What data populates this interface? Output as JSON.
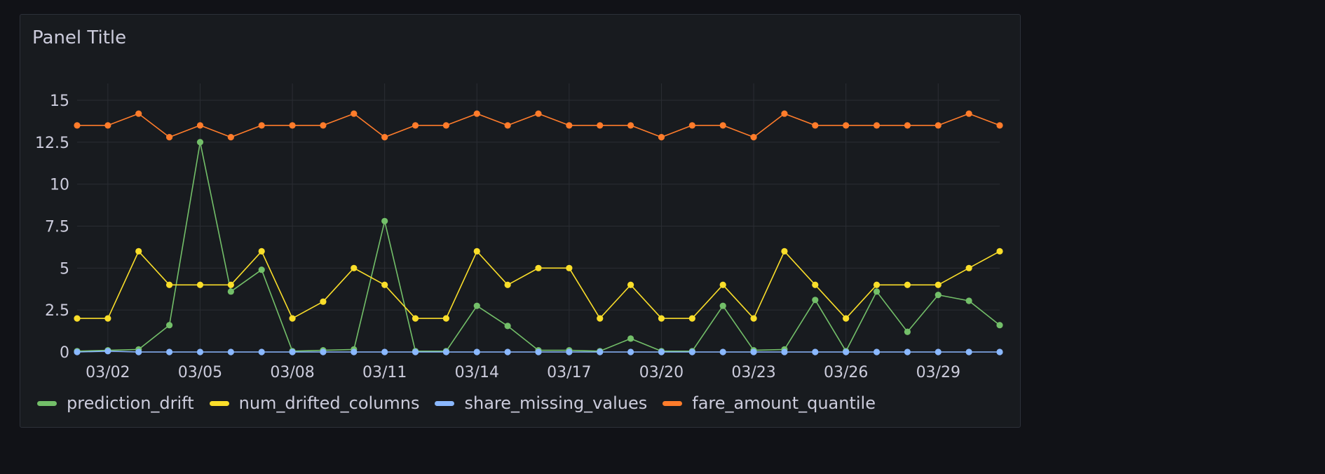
{
  "panel": {
    "title": "Panel Title"
  },
  "chart_data": {
    "type": "line",
    "x": [
      "03/01",
      "03/02",
      "03/03",
      "03/04",
      "03/05",
      "03/06",
      "03/07",
      "03/08",
      "03/09",
      "03/10",
      "03/11",
      "03/12",
      "03/13",
      "03/14",
      "03/15",
      "03/16",
      "03/17",
      "03/18",
      "03/19",
      "03/20",
      "03/21",
      "03/22",
      "03/23",
      "03/24",
      "03/25",
      "03/26",
      "03/27",
      "03/28",
      "03/29",
      "03/30",
      "03/31"
    ],
    "xticks": [
      "03/02",
      "03/05",
      "03/08",
      "03/11",
      "03/14",
      "03/17",
      "03/20",
      "03/23",
      "03/26",
      "03/29"
    ],
    "ylim": [
      0,
      16
    ],
    "yticks": [
      0,
      2.5,
      5,
      7.5,
      10,
      12.5,
      15
    ],
    "ytick_labels": [
      "0",
      "2.5",
      "5",
      "7.5",
      "10",
      "12.5",
      "15"
    ],
    "grid": true,
    "legend": "bottom-left",
    "series": [
      {
        "name": "prediction_drift",
        "color": "#73bf69",
        "values": [
          0.05,
          0.1,
          0.15,
          1.6,
          12.5,
          3.6,
          4.9,
          0.05,
          0.1,
          0.15,
          7.8,
          0.05,
          0.05,
          2.75,
          1.55,
          0.1,
          0.1,
          0.05,
          0.8,
          0.05,
          0.05,
          2.75,
          0.1,
          0.15,
          3.1,
          0.05,
          3.6,
          1.2,
          3.4,
          3.05,
          1.6
        ]
      },
      {
        "name": "num_drifted_columns",
        "color": "#fade2a",
        "values": [
          2,
          2,
          6,
          4,
          4,
          4,
          6,
          2,
          3,
          5,
          4,
          2,
          2,
          6,
          4,
          5,
          5,
          2,
          4,
          2,
          2,
          4,
          2,
          6,
          4,
          2,
          4,
          4,
          4,
          5,
          6
        ]
      },
      {
        "name": "share_missing_values",
        "color": "#8ab8ff",
        "values": [
          0,
          0.05,
          0,
          0,
          0,
          0,
          0,
          0,
          0,
          0,
          0,
          0,
          0,
          0,
          0,
          0,
          0,
          0,
          0,
          0,
          0,
          0,
          0,
          0,
          0,
          0,
          0,
          0,
          0,
          0,
          0
        ]
      },
      {
        "name": "fare_amount_quantile",
        "color": "#ff7c2b",
        "values": [
          13.5,
          13.5,
          14.2,
          12.8,
          13.5,
          12.8,
          13.5,
          13.5,
          13.5,
          14.2,
          12.8,
          13.5,
          13.5,
          14.2,
          13.5,
          14.2,
          13.5,
          13.5,
          13.5,
          12.8,
          13.5,
          13.5,
          12.8,
          14.2,
          13.5,
          13.5,
          13.5,
          13.5,
          13.5,
          14.2,
          13.5
        ]
      }
    ]
  }
}
